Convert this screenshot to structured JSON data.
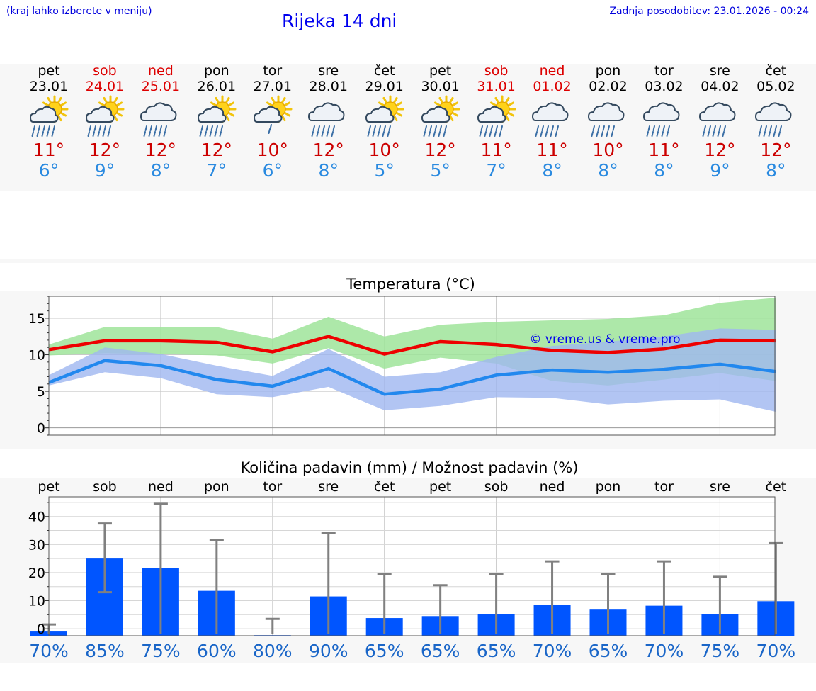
{
  "header": {
    "left_note": "(kraj lahko izberete v meniju)",
    "title": "Rijeka 14 dni",
    "updated": "Zadnja posodobitev: 23.01.2026 - 00:24"
  },
  "colors": {
    "max": "#ee0000",
    "min": "#2288ee",
    "max_band": "#9fe49a",
    "min_band": "#9fb6f0",
    "bar": "#0055ff",
    "weekend": "#dd0000",
    "pct": "#1a66c8"
  },
  "days": [
    {
      "name": "pet",
      "date": "23.01",
      "weekend": false,
      "icon": "sun-cloud-rain-icon",
      "max": "11°",
      "min": "6°"
    },
    {
      "name": "sob",
      "date": "24.01",
      "weekend": true,
      "icon": "sun-cloud-rain-icon",
      "max": "12°",
      "min": "9°"
    },
    {
      "name": "ned",
      "date": "25.01",
      "weekend": true,
      "icon": "cloud-rain-icon",
      "max": "12°",
      "min": "8°"
    },
    {
      "name": "pon",
      "date": "26.01",
      "weekend": false,
      "icon": "sun-cloud-rain-icon",
      "max": "12°",
      "min": "7°"
    },
    {
      "name": "tor",
      "date": "27.01",
      "weekend": false,
      "icon": "sun-cloud-light-rain-icon",
      "max": "10°",
      "min": "6°"
    },
    {
      "name": "sre",
      "date": "28.01",
      "weekend": false,
      "icon": "cloud-rain-icon",
      "max": "12°",
      "min": "8°"
    },
    {
      "name": "čet",
      "date": "29.01",
      "weekend": false,
      "icon": "sun-cloud-rain-icon",
      "max": "10°",
      "min": "5°"
    },
    {
      "name": "pet",
      "date": "30.01",
      "weekend": false,
      "icon": "sun-cloud-rain-icon",
      "max": "12°",
      "min": "5°"
    },
    {
      "name": "sob",
      "date": "31.01",
      "weekend": true,
      "icon": "sun-cloud-rain-icon",
      "max": "11°",
      "min": "7°"
    },
    {
      "name": "ned",
      "date": "01.02",
      "weekend": true,
      "icon": "cloud-rain-icon",
      "max": "11°",
      "min": "8°"
    },
    {
      "name": "pon",
      "date": "02.02",
      "weekend": false,
      "icon": "cloud-rain-icon",
      "max": "10°",
      "min": "8°"
    },
    {
      "name": "tor",
      "date": "03.02",
      "weekend": false,
      "icon": "cloud-rain-icon",
      "max": "11°",
      "min": "8°"
    },
    {
      "name": "sre",
      "date": "04.02",
      "weekend": false,
      "icon": "cloud-rain-icon",
      "max": "12°",
      "min": "9°"
    },
    {
      "name": "čet",
      "date": "05.02",
      "weekend": false,
      "icon": "cloud-rain-icon",
      "max": "12°",
      "min": "8°"
    }
  ],
  "chart_data": [
    {
      "type": "line",
      "title": "Temperatura (°C)",
      "watermark": "© vreme.us & vreme.pro",
      "x": [
        0,
        1,
        2,
        3,
        4,
        5,
        6,
        7,
        8,
        9,
        10,
        11,
        12,
        13
      ],
      "ylim": [
        -1,
        18
      ],
      "yticks": [
        0,
        5,
        10,
        15
      ],
      "series": [
        {
          "name": "max",
          "values": [
            10.7,
            11.9,
            11.9,
            11.7,
            10.4,
            12.5,
            10.1,
            11.8,
            11.4,
            10.6,
            10.3,
            10.8,
            12.0,
            11.9
          ]
        },
        {
          "name": "min",
          "values": [
            6.2,
            9.2,
            8.5,
            6.6,
            5.7,
            8.1,
            4.6,
            5.3,
            7.2,
            7.9,
            7.6,
            8.0,
            8.7,
            7.7
          ]
        }
      ],
      "bands": [
        {
          "name": "max-range",
          "lower": [
            9.9,
            10.2,
            10.1,
            9.9,
            8.8,
            10.9,
            8.1,
            9.6,
            8.8,
            6.4,
            5.8,
            6.6,
            7.5,
            6.4
          ],
          "upper": [
            11.4,
            13.8,
            13.8,
            13.8,
            12.2,
            15.2,
            12.5,
            14.1,
            14.5,
            14.7,
            14.9,
            15.4,
            17.1,
            17.8
          ]
        },
        {
          "name": "min-range",
          "lower": [
            5.8,
            7.6,
            6.8,
            4.6,
            4.2,
            5.6,
            2.4,
            3.0,
            4.2,
            4.1,
            3.2,
            3.7,
            3.9,
            2.2
          ],
          "upper": [
            7.2,
            11.0,
            10.1,
            8.5,
            7.1,
            10.8,
            7.0,
            7.6,
            9.7,
            11.2,
            11.8,
            12.5,
            13.6,
            13.4
          ]
        }
      ]
    },
    {
      "type": "bar",
      "title": "Količina padavin (mm) / Možnost padavin (%)",
      "categories": [
        "pet",
        "sob",
        "ned",
        "pon",
        "tor",
        "sre",
        "čet",
        "pet",
        "sob",
        "ned",
        "pon",
        "tor",
        "sre",
        "čet"
      ],
      "ylim": [
        -2.5,
        47
      ],
      "yticks": [
        0,
        10,
        20,
        30,
        40
      ],
      "values": [
        -1,
        25,
        21.5,
        13.5,
        -2.3,
        11.5,
        3.8,
        4.5,
        5.2,
        8.6,
        6.8,
        8.2,
        5.2,
        9.8
      ],
      "error_low": [
        -2,
        13,
        -2,
        -2,
        -2,
        -2,
        -2,
        -2,
        -2,
        -2,
        -2,
        -2,
        -2,
        -2
      ],
      "error_high": [
        1.5,
        37.5,
        44.5,
        31.5,
        3.5,
        34,
        19.5,
        15.5,
        19.5,
        24,
        19.5,
        24,
        18.5,
        30.5
      ],
      "probability": [
        "70%",
        "85%",
        "75%",
        "60%",
        "80%",
        "90%",
        "65%",
        "65%",
        "65%",
        "70%",
        "65%",
        "70%",
        "75%",
        "70%"
      ]
    }
  ]
}
